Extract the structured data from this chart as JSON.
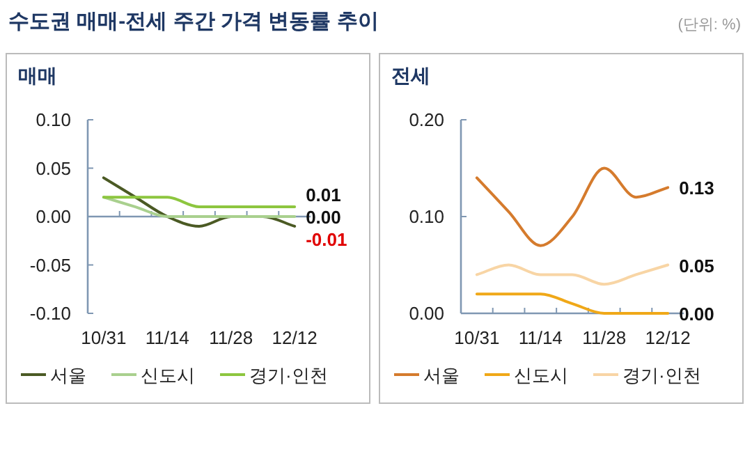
{
  "chart_data": [
    {
      "type": "line",
      "title": "매매",
      "annotations": [
        "수도권 매매-전세 주간 가격 변동률 추이",
        "(단위: %)"
      ],
      "categories": [
        "10/31",
        null,
        "11/14",
        null,
        "11/28",
        null,
        "12/12"
      ],
      "ylim": [
        -0.1,
        0.1
      ],
      "yticks": [
        {
          "value": 0.1,
          "label": "0.10"
        },
        {
          "value": 0.05,
          "label": "0.05"
        },
        {
          "value": 0,
          "label": "0.00"
        },
        {
          "value": -0.05,
          "label": "-0.05"
        },
        {
          "value": -0.1,
          "label": "-0.10"
        }
      ],
      "grid": false,
      "legend": "bottom",
      "marker": "none",
      "line_style": "solid",
      "ref_lines": [
        {
          "axis": "y",
          "value": 0,
          "color": "#7f97b2"
        }
      ],
      "series": [
        {
          "name": "서울",
          "color": "#4b5a24",
          "values": [
            0.04,
            0.02,
            0.0,
            -0.01,
            0.0,
            0.0,
            -0.01
          ],
          "value_labels": [
            null,
            null,
            null,
            null,
            null,
            null,
            "-0.01"
          ]
        },
        {
          "name": "신도시",
          "color": "#a9d08e",
          "values": [
            0.02,
            0.01,
            0.0,
            0.0,
            0.0,
            0.0,
            0.0
          ],
          "value_labels": [
            null,
            null,
            null,
            null,
            null,
            null,
            "0.00"
          ]
        },
        {
          "name": "경기·인천",
          "color": "#8dc63f",
          "values": [
            0.02,
            0.02,
            0.02,
            0.01,
            0.01,
            0.01,
            0.01
          ],
          "value_labels": [
            null,
            null,
            null,
            null,
            null,
            null,
            "0.01"
          ]
        }
      ]
    },
    {
      "type": "line",
      "title": "전세",
      "categories": [
        "10/31",
        null,
        "11/14",
        null,
        "11/28",
        null,
        "12/12"
      ],
      "ylim": [
        0,
        0.2
      ],
      "yticks": [
        {
          "value": 0.2,
          "label": "0.20"
        },
        {
          "value": 0.1,
          "label": "0.10"
        },
        {
          "value": 0,
          "label": "0.00"
        }
      ],
      "grid": false,
      "legend": "bottom",
      "marker": "none",
      "line_style": "solid",
      "series": [
        {
          "name": "서울",
          "color": "#d57b2d",
          "values": [
            0.14,
            0.105,
            0.07,
            0.1,
            0.15,
            0.12,
            0.13
          ],
          "value_labels": [
            null,
            null,
            null,
            null,
            null,
            null,
            "0.13"
          ]
        },
        {
          "name": "신도시",
          "color": "#f0a818",
          "values": [
            0.02,
            0.02,
            0.02,
            0.01,
            0.0,
            0.0,
            0.0
          ],
          "value_labels": [
            null,
            null,
            null,
            null,
            null,
            null,
            "0.00"
          ]
        },
        {
          "name": "경기·인천",
          "color": "#f8d5a5",
          "values": [
            0.04,
            0.05,
            0.04,
            0.04,
            0.03,
            0.04,
            0.05
          ],
          "value_labels": [
            null,
            null,
            null,
            null,
            null,
            null,
            "0.05"
          ]
        }
      ]
    }
  ]
}
